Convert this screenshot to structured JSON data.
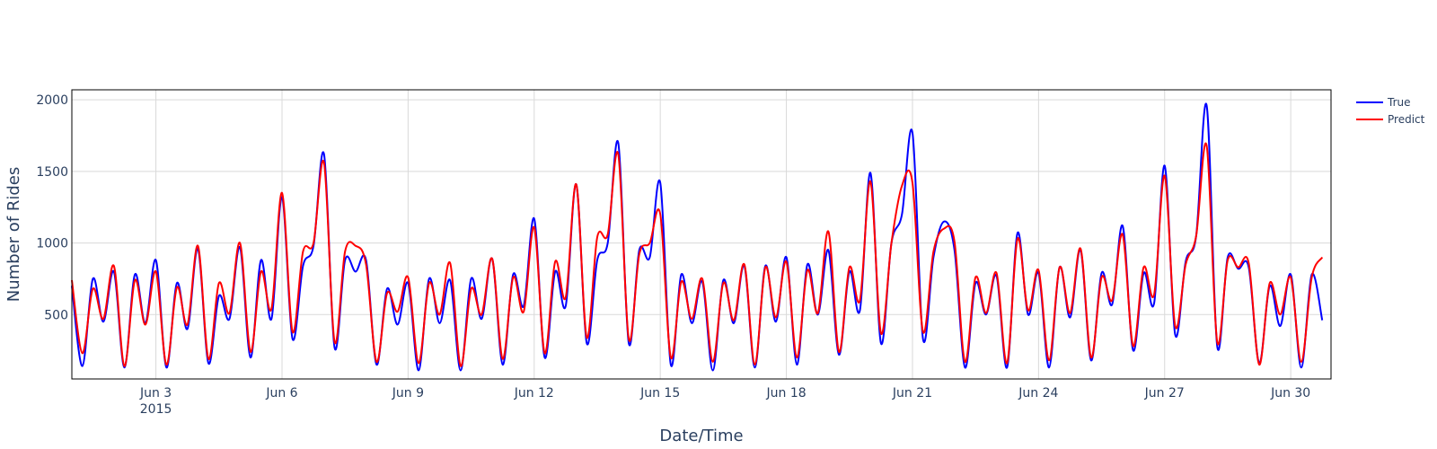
{
  "chart_data": {
    "type": "line",
    "title": "",
    "xlabel": "Date/Time",
    "ylabel": "Number of Rides",
    "x_range": [
      "2015-06-01 00:00",
      "2015-06-30 23:00"
    ],
    "ylim": [
      50,
      2070
    ],
    "grid": true,
    "legend_position": "top-right",
    "x_ticks": [
      {
        "date": "2015-06-03",
        "label": "Jun 3",
        "sublabel": "2015"
      },
      {
        "date": "2015-06-06",
        "label": "Jun 6",
        "sublabel": ""
      },
      {
        "date": "2015-06-09",
        "label": "Jun 9",
        "sublabel": ""
      },
      {
        "date": "2015-06-12",
        "label": "Jun 12",
        "sublabel": ""
      },
      {
        "date": "2015-06-15",
        "label": "Jun 15",
        "sublabel": ""
      },
      {
        "date": "2015-06-18",
        "label": "Jun 18",
        "sublabel": ""
      },
      {
        "date": "2015-06-21",
        "label": "Jun 21",
        "sublabel": ""
      },
      {
        "date": "2015-06-24",
        "label": "Jun 24",
        "sublabel": ""
      },
      {
        "date": "2015-06-27",
        "label": "Jun 27",
        "sublabel": ""
      },
      {
        "date": "2015-06-30",
        "label": "Jun 30",
        "sublabel": ""
      }
    ],
    "y_ticks": [
      500,
      1000,
      1500,
      2000
    ],
    "sampling": "6-hourly",
    "x": [
      "2015-06-01 00:00",
      "2015-06-01 06:00",
      "2015-06-01 12:00",
      "2015-06-01 18:00",
      "2015-06-02 00:00",
      "2015-06-02 06:00",
      "2015-06-02 12:00",
      "2015-06-02 18:00",
      "2015-06-03 00:00",
      "2015-06-03 06:00",
      "2015-06-03 12:00",
      "2015-06-03 18:00",
      "2015-06-04 00:00",
      "2015-06-04 06:00",
      "2015-06-04 12:00",
      "2015-06-04 18:00",
      "2015-06-05 00:00",
      "2015-06-05 06:00",
      "2015-06-05 12:00",
      "2015-06-05 18:00",
      "2015-06-06 00:00",
      "2015-06-06 06:00",
      "2015-06-06 12:00",
      "2015-06-06 18:00",
      "2015-06-07 00:00",
      "2015-06-07 06:00",
      "2015-06-07 12:00",
      "2015-06-07 18:00",
      "2015-06-08 00:00",
      "2015-06-08 06:00",
      "2015-06-08 12:00",
      "2015-06-08 18:00",
      "2015-06-09 00:00",
      "2015-06-09 06:00",
      "2015-06-09 12:00",
      "2015-06-09 18:00",
      "2015-06-10 00:00",
      "2015-06-10 06:00",
      "2015-06-10 12:00",
      "2015-06-10 18:00",
      "2015-06-11 00:00",
      "2015-06-11 06:00",
      "2015-06-11 12:00",
      "2015-06-11 18:00",
      "2015-06-12 00:00",
      "2015-06-12 06:00",
      "2015-06-12 12:00",
      "2015-06-12 18:00",
      "2015-06-13 00:00",
      "2015-06-13 06:00",
      "2015-06-13 12:00",
      "2015-06-13 18:00",
      "2015-06-14 00:00",
      "2015-06-14 06:00",
      "2015-06-14 12:00",
      "2015-06-14 18:00",
      "2015-06-15 00:00",
      "2015-06-15 06:00",
      "2015-06-15 12:00",
      "2015-06-15 18:00",
      "2015-06-16 00:00",
      "2015-06-16 06:00",
      "2015-06-16 12:00",
      "2015-06-16 18:00",
      "2015-06-17 00:00",
      "2015-06-17 06:00",
      "2015-06-17 12:00",
      "2015-06-17 18:00",
      "2015-06-18 00:00",
      "2015-06-18 06:00",
      "2015-06-18 12:00",
      "2015-06-18 18:00",
      "2015-06-19 00:00",
      "2015-06-19 06:00",
      "2015-06-19 12:00",
      "2015-06-19 18:00",
      "2015-06-20 00:00",
      "2015-06-20 06:00",
      "2015-06-20 12:00",
      "2015-06-20 18:00",
      "2015-06-21 00:00",
      "2015-06-21 06:00",
      "2015-06-21 12:00",
      "2015-06-21 18:00",
      "2015-06-22 00:00",
      "2015-06-22 06:00",
      "2015-06-22 12:00",
      "2015-06-22 18:00",
      "2015-06-23 00:00",
      "2015-06-23 06:00",
      "2015-06-23 12:00",
      "2015-06-23 18:00",
      "2015-06-24 00:00",
      "2015-06-24 06:00",
      "2015-06-24 12:00",
      "2015-06-24 18:00",
      "2015-06-25 00:00",
      "2015-06-25 06:00",
      "2015-06-25 12:00",
      "2015-06-25 18:00",
      "2015-06-26 00:00",
      "2015-06-26 06:00",
      "2015-06-26 12:00",
      "2015-06-26 18:00",
      "2015-06-27 00:00",
      "2015-06-27 06:00",
      "2015-06-27 12:00",
      "2015-06-27 18:00",
      "2015-06-28 00:00",
      "2015-06-28 06:00",
      "2015-06-28 12:00",
      "2015-06-28 18:00",
      "2015-06-29 00:00",
      "2015-06-29 06:00",
      "2015-06-29 12:00",
      "2015-06-29 18:00",
      "2015-06-30 00:00",
      "2015-06-30 06:00",
      "2015-06-30 12:00",
      "2015-06-30 18:00"
    ],
    "series": [
      {
        "name": "True",
        "color": "#0000ff",
        "values": [
          700,
          140,
          750,
          450,
          800,
          130,
          780,
          440,
          880,
          130,
          720,
          400,
          960,
          160,
          630,
          470,
          970,
          200,
          880,
          470,
          1320,
          330,
          840,
          980,
          1620,
          270,
          880,
          800,
          880,
          150,
          680,
          430,
          720,
          110,
          750,
          440,
          740,
          110,
          750,
          470,
          890,
          150,
          780,
          560,
          1170,
          200,
          800,
          560,
          1410,
          300,
          880,
          1000,
          1700,
          300,
          950,
          900,
          1420,
          150,
          780,
          440,
          730,
          110,
          740,
          440,
          840,
          130,
          840,
          450,
          900,
          150,
          850,
          500,
          950,
          220,
          800,
          530,
          1490,
          300,
          1000,
          1200,
          1770,
          330,
          900,
          1150,
          950,
          130,
          720,
          500,
          770,
          130,
          1070,
          500,
          790,
          130,
          830,
          480,
          950,
          180,
          790,
          570,
          1120,
          250,
          790,
          580,
          1540,
          360,
          870,
          1050,
          1960,
          280,
          900,
          820,
          830,
          160,
          700,
          420,
          780,
          130,
          780,
          460
        ]
      },
      {
        "name": "Predict",
        "color": "#ff0000",
        "values": [
          740,
          230,
          680,
          470,
          840,
          140,
          740,
          430,
          800,
          150,
          690,
          430,
          980,
          190,
          720,
          510,
          1000,
          240,
          800,
          540,
          1350,
          380,
          940,
          1000,
          1560,
          310,
          940,
          980,
          850,
          170,
          650,
          520,
          760,
          160,
          720,
          500,
          860,
          140,
          680,
          500,
          890,
          190,
          760,
          520,
          1110,
          230,
          870,
          620,
          1410,
          340,
          1040,
          1060,
          1620,
          330,
          920,
          1000,
          1200,
          200,
          730,
          470,
          750,
          170,
          720,
          460,
          850,
          150,
          830,
          480,
          870,
          200,
          810,
          510,
          1080,
          240,
          830,
          600,
          1430,
          370,
          1000,
          1400,
          1420,
          380,
          940,
          1100,
          1010,
          170,
          760,
          510,
          790,
          160,
          1030,
          530,
          810,
          180,
          830,
          510,
          960,
          200,
          760,
          600,
          1060,
          280,
          830,
          640,
          1470,
          420,
          850,
          1050,
          1680,
          310,
          880,
          830,
          860,
          150,
          720,
          500,
          760,
          170,
          760,
          900
        ]
      }
    ]
  }
}
